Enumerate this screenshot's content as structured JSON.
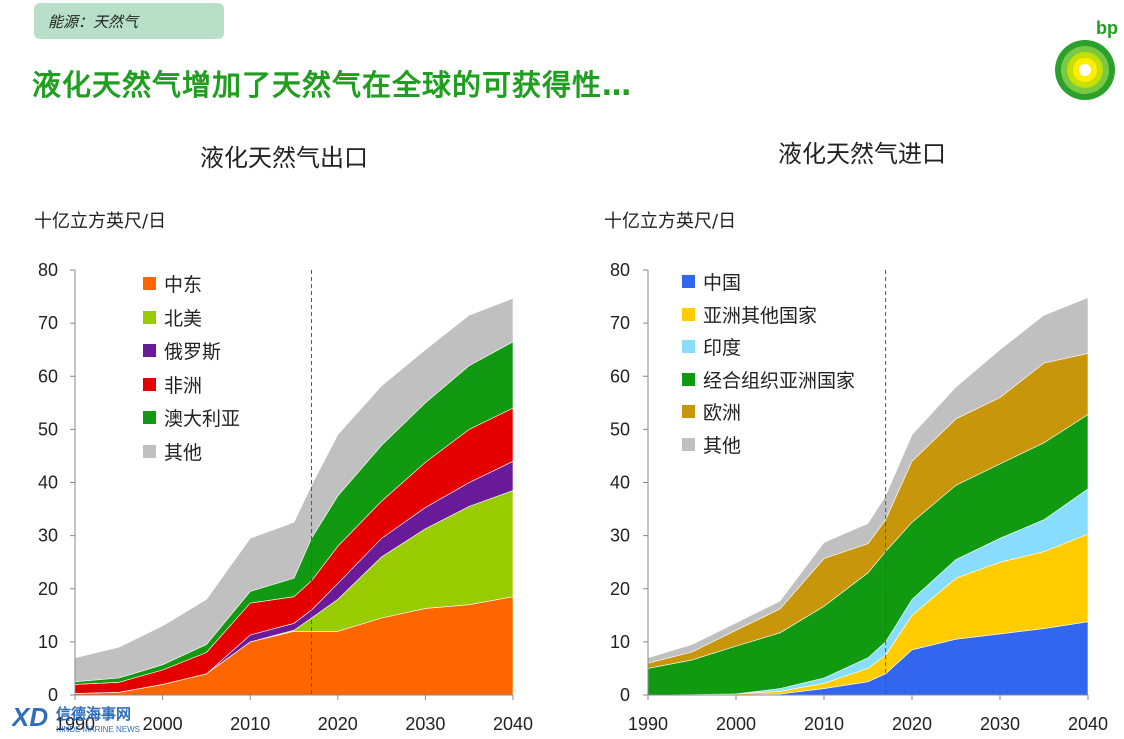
{
  "header": {
    "tag": "能源：天然气",
    "headline": "液化天然气增加了天然气在全球的可获得性…",
    "brand": "bp"
  },
  "watermark": {
    "text": "信德海事网",
    "sub": "XINDE MARINE NEWS"
  },
  "colors": {
    "headline": "#1f9e1f"
  },
  "chart_data": [
    {
      "type": "area",
      "title": "液化天然气出口",
      "ylabel": "十亿立方英尺/日",
      "x": [
        1990,
        1995,
        2000,
        2005,
        2010,
        2015,
        2017,
        2020,
        2025,
        2030,
        2035,
        2040
      ],
      "xticks": [
        1990,
        2000,
        2010,
        2020,
        2030,
        2040
      ],
      "xtick_labels": [
        "1990",
        "2000",
        "2010",
        "2020",
        "2030",
        "2040"
      ],
      "ylim": [
        0,
        80
      ],
      "yticks": [
        0,
        10,
        20,
        30,
        40,
        50,
        60,
        70,
        80
      ],
      "xlim": [
        1990,
        2040
      ],
      "divider_x": 2017,
      "series": [
        {
          "name": "中东",
          "color": "#ff6600",
          "values": [
            0.3,
            0.5,
            2,
            4,
            10,
            12,
            12,
            12,
            14.5,
            16.3,
            17,
            18.5
          ]
        },
        {
          "name": "北美",
          "color": "#99cc00",
          "values": [
            0,
            0,
            0,
            0,
            0,
            0.2,
            2.5,
            6,
            11.5,
            15,
            18.5,
            20
          ]
        },
        {
          "name": "俄罗斯",
          "color": "#6a1b9a",
          "values": [
            0,
            0,
            0,
            0,
            1.3,
            1.3,
            1.5,
            3,
            3.5,
            4,
            4.5,
            5.5
          ]
        },
        {
          "name": "非洲",
          "color": "#e50000",
          "values": [
            1.7,
            1.9,
            2.7,
            4,
            6,
            5,
            5.5,
            7,
            7,
            8.5,
            10,
            10
          ]
        },
        {
          "name": "澳大利亚",
          "color": "#119a11",
          "values": [
            0.5,
            0.8,
            1,
            1.5,
            2.2,
            3.5,
            8,
            9.5,
            10.5,
            11.2,
            12,
            12.5
          ]
        },
        {
          "name": "其他",
          "color": "#c0c0c0",
          "values": [
            4.5,
            5.8,
            7.3,
            8.5,
            10,
            10.5,
            10,
            11.5,
            11.2,
            10,
            9.5,
            8.2
          ]
        }
      ]
    },
    {
      "type": "area",
      "title": "液化天然气进口",
      "ylabel": "十亿立方英尺/日",
      "x": [
        1990,
        1995,
        2000,
        2005,
        2010,
        2015,
        2017,
        2020,
        2025,
        2030,
        2035,
        2040
      ],
      "xticks": [
        1990,
        2000,
        2010,
        2020,
        2030,
        2040
      ],
      "xtick_labels": [
        "1990",
        "2000",
        "2010",
        "2020",
        "2030",
        "2040"
      ],
      "ylim": [
        0,
        80
      ],
      "yticks": [
        0,
        10,
        20,
        30,
        40,
        50,
        60,
        70,
        80
      ],
      "xlim": [
        1990,
        2040
      ],
      "divider_x": 2017,
      "series": [
        {
          "name": "中国",
          "color": "#3366ee",
          "values": [
            0,
            0,
            0,
            0.2,
            1.2,
            2.5,
            4,
            8.5,
            10.5,
            11.5,
            12.5,
            13.8
          ]
        },
        {
          "name": "亚洲其他国家",
          "color": "#ffcc00",
          "values": [
            0,
            0.1,
            0.2,
            0.5,
            1,
            2.5,
            3.5,
            6.5,
            11.5,
            13.5,
            14.5,
            16.5
          ]
        },
        {
          "name": "印度",
          "color": "#88ddff",
          "values": [
            0,
            0,
            0,
            0.5,
            1,
            2,
            2.5,
            3,
            3.5,
            4.5,
            6,
            8.5
          ]
        },
        {
          "name": "经合组织亚洲国家",
          "color": "#119a11",
          "values": [
            5,
            6.5,
            9,
            10.5,
            13.5,
            16,
            17,
            14.5,
            14,
            14,
            14.5,
            14
          ]
        },
        {
          "name": "欧洲",
          "color": "#c8960a",
          "values": [
            1,
            1.5,
            3,
            4.5,
            9,
            5.5,
            6,
            11.5,
            12.5,
            12.5,
            15,
            11.5
          ]
        },
        {
          "name": "其他",
          "color": "#c0c0c0",
          "values": [
            1,
            1.4,
            1.4,
            1.5,
            3,
            3.8,
            4.5,
            5,
            6,
            9,
            9,
            10.5
          ]
        }
      ]
    }
  ]
}
